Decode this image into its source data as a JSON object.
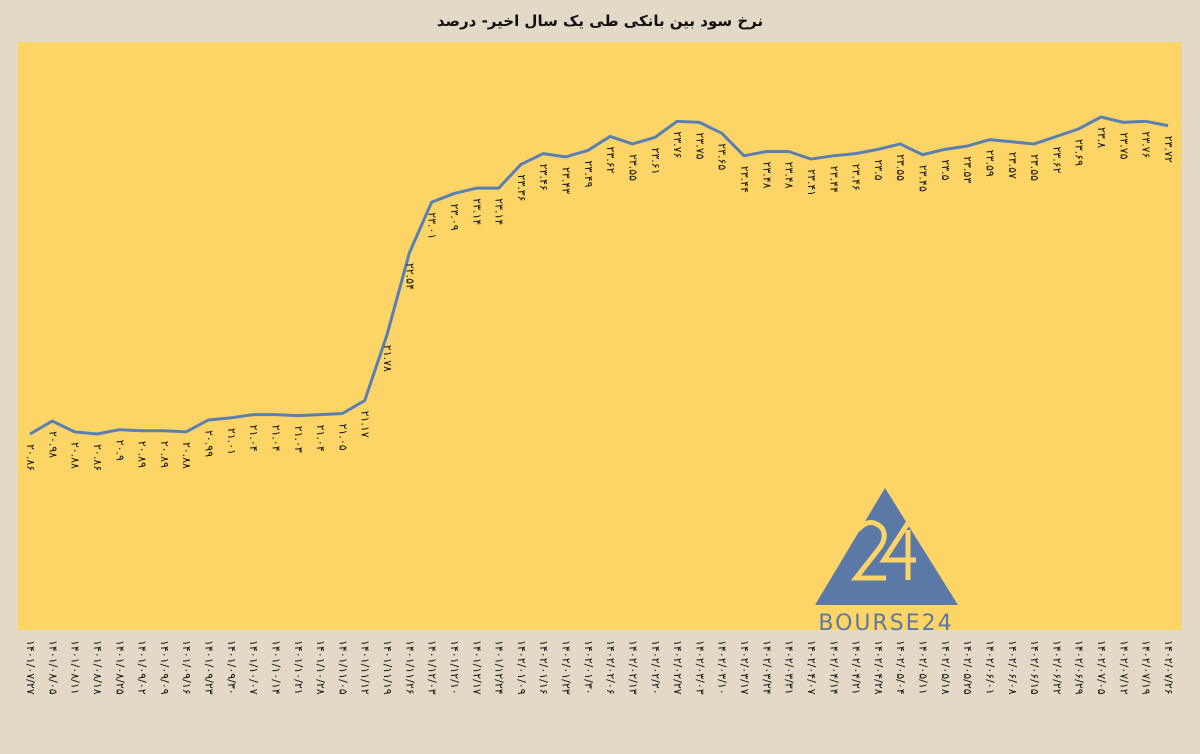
{
  "chart_data": {
    "type": "line",
    "title": "نرخ سود بین بانکی طی یک سال اخیر- درصد",
    "watermark": "BOURSE24",
    "categories": [
      "۱۴۰۱/۰۷/۲۷",
      "۱۴۰۱/۰۸/۰۵",
      "۱۴۰۱/۰۸/۱۱",
      "۱۴۰۱/۰۸/۱۸",
      "۱۴۰۱/۰۸/۲۵",
      "۱۴۰۱/۰۹/۰۲",
      "۱۴۰۱/۰۹/۰۹",
      "۱۴۰۱/۰۹/۱۶",
      "۱۴۰۱/۰۹/۲۳",
      "۱۴۰۱/۰۹/۳۰",
      "۱۴۰۱/۱۰/۰۷",
      "۱۴۰۱/۱۰/۱۴",
      "۱۴۰۱/۱۰/۲۱",
      "۱۴۰۱/۱۰/۲۸",
      "۱۴۰۱/۱۱/۰۵",
      "۱۴۰۱/۱۱/۱۲",
      "۱۴۰۱/۱۱/۱۹",
      "۱۴۰۱/۱۱/۲۶",
      "۱۴۰۱/۱۲/۰۳",
      "۱۴۰۱/۱۲/۱۰",
      "۱۴۰۱/۱۲/۱۷",
      "۱۴۰۱/۱۲/۲۴",
      "۱۴۰۲/۰۱/۰۹",
      "۱۴۰۲/۰۱/۱۶",
      "۱۴۰۲/۰۱/۲۳",
      "۱۴۰۲/۰۱/۳۰",
      "۱۴۰۲/۰۲/۰۶",
      "۱۴۰۲/۰۲/۱۳",
      "۱۴۰۲/۰۲/۲۰",
      "۱۴۰۲/۰۲/۲۷",
      "۱۴۰۲/۰۳/۰۳",
      "۱۴۰۲/۰۳/۱۰",
      "۱۴۰۲/۰۳/۱۷",
      "۱۴۰۲/۰۳/۲۴",
      "۱۴۰۲/۰۳/۳۱",
      "۱۴۰۲/۰۴/۰۷",
      "۱۴۰۲/۰۴/۱۴",
      "۱۴۰۲/۰۴/۲۱",
      "۱۴۰۲/۰۴/۲۸",
      "۱۴۰۲/۰۵/۰۴",
      "۱۴۰۲/۰۵/۱۱",
      "۱۴۰۲/۰۵/۱۸",
      "۱۴۰۲/۰۵/۲۵",
      "۱۴۰۲/۰۶/۰۱",
      "۱۴۰۲/۰۶/۰۸",
      "۱۴۰۲/۰۶/۱۵",
      "۱۴۰۲/۰۶/۲۲",
      "۱۴۰۲/۰۶/۲۹",
      "۱۴۰۲/۰۷/۰۵",
      "۱۴۰۲/۰۷/۱۲",
      "۱۴۰۲/۰۷/۱۹",
      "۱۴۰۲/۰۷/۲۶"
    ],
    "values": [
      20.86,
      20.98,
      20.88,
      20.86,
      20.9,
      20.89,
      20.89,
      20.88,
      20.99,
      21.01,
      21.04,
      21.04,
      21.03,
      21.04,
      21.05,
      21.17,
      21.78,
      22.54,
      23.01,
      23.09,
      23.14,
      23.14,
      23.36,
      23.46,
      23.43,
      23.49,
      23.62,
      23.55,
      23.61,
      23.76,
      23.75,
      23.65,
      23.44,
      23.48,
      23.48,
      23.41,
      23.44,
      23.46,
      23.5,
      23.55,
      23.45,
      23.5,
      23.53,
      23.59,
      23.57,
      23.55,
      23.62,
      23.69,
      23.8,
      23.75,
      23.76,
      23.72
    ],
    "value_labels": [
      "۲۰.۸۶",
      "۲۰.۹۸",
      "۲۰.۸۸",
      "۲۰.۸۶",
      "۲۰.۹",
      "۲۰.۸۹",
      "۲۰.۸۹",
      "۲۰.۸۸",
      "۲۰.۹۹",
      "۲۱.۰۱",
      "۲۱.۰۴",
      "۲۱.۰۴",
      "۲۱.۰۳",
      "۲۱.۰۴",
      "۲۱.۰۵",
      "۲۱.۱۷",
      "۲۱.۷۸",
      "۲۲.۵۴",
      "۲۳.۰۱",
      "۲۳.۰۹",
      "۲۳.۱۴",
      "۲۳.۱۴",
      "۲۳.۳۶",
      "۲۳.۴۶",
      "۲۳.۴۳",
      "۲۳.۴۹",
      "۲۳.۶۲",
      "۲۳.۵۵",
      "۲۳.۶۱",
      "۲۳.۷۶",
      "۲۳.۷۵",
      "۲۳.۶۵",
      "۲۳.۴۴",
      "۲۳.۴۸",
      "۲۳.۴۸",
      "۲۳.۴۱",
      "۲۳.۴۴",
      "۲۳.۴۶",
      "۲۳.۵",
      "۲۳.۵۵",
      "۲۳.۴۵",
      "۲۳.۵",
      "۲۳.۵۳",
      "۲۳.۵۹",
      "۲۳.۵۷",
      "۲۳.۵۵",
      "۲۳.۶۲",
      "۲۳.۶۹",
      "۲۳.۸",
      "۲۳.۷۵",
      "۲۳.۷۶",
      "۲۳.۷۲"
    ],
    "color": "#5a7fb3"
  }
}
